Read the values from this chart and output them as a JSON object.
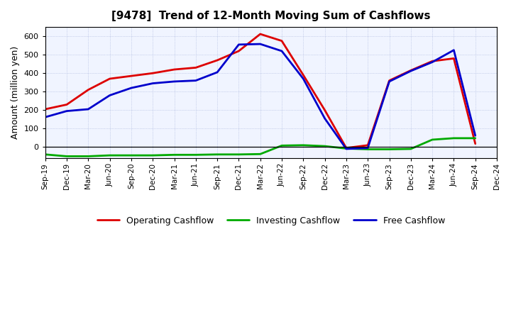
{
  "title": "[9478]  Trend of 12-Month Moving Sum of Cashflows",
  "ylabel": "Amount (million yen)",
  "ylim": [
    -60,
    650
  ],
  "yticks": [
    0,
    100,
    200,
    300,
    400,
    500,
    600
  ],
  "background_color": "#ffffff",
  "plot_bg_color": "#f0f4ff",
  "grid_color": "#8899cc",
  "dates": [
    "Sep-19",
    "Dec-19",
    "Mar-20",
    "Jun-20",
    "Sep-20",
    "Dec-20",
    "Mar-21",
    "Jun-21",
    "Sep-21",
    "Dec-21",
    "Mar-22",
    "Jun-22",
    "Sep-22",
    "Dec-22",
    "Mar-23",
    "Jun-23",
    "Sep-23",
    "Dec-23",
    "Mar-24",
    "Jun-24",
    "Sep-24",
    "Dec-24"
  ],
  "operating": [
    205,
    230,
    310,
    370,
    385,
    400,
    420,
    430,
    470,
    520,
    612,
    575,
    390,
    200,
    -5,
    10,
    360,
    415,
    465,
    480,
    18,
    null
  ],
  "investing": [
    -40,
    -50,
    -50,
    -45,
    -45,
    -45,
    -42,
    -42,
    -40,
    -40,
    -38,
    8,
    10,
    5,
    -8,
    -12,
    -12,
    -10,
    40,
    48,
    48,
    null
  ],
  "free": [
    162,
    195,
    205,
    280,
    320,
    345,
    355,
    360,
    405,
    555,
    558,
    520,
    370,
    155,
    -10,
    -5,
    355,
    412,
    460,
    525,
    62,
    null
  ],
  "op_color": "#dd0000",
  "inv_color": "#00aa00",
  "free_color": "#0000cc",
  "linewidth": 2.0
}
